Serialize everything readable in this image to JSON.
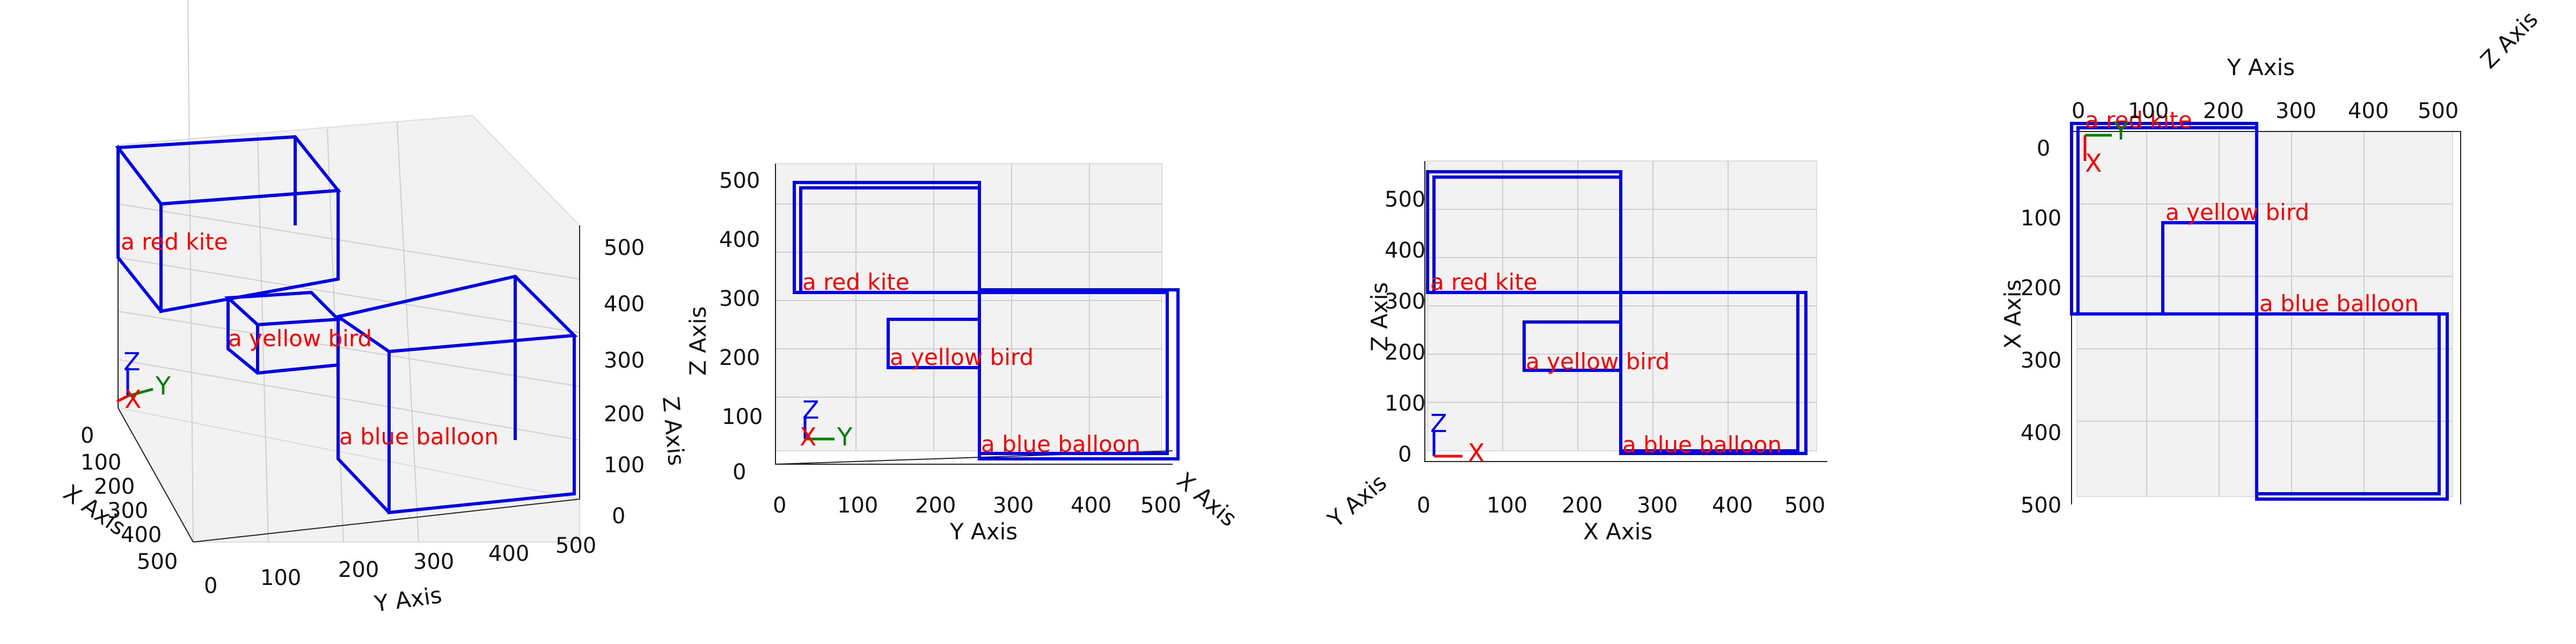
{
  "views": [
    {
      "id": "view-perspective",
      "x_axis_label": "X Axis",
      "y_axis_label": "Y Axis",
      "z_axis_label": "Z Axis",
      "x_ticks": [
        "0",
        "100",
        "200",
        "300",
        "400",
        "500"
      ],
      "y_ticks": [
        "0",
        "100",
        "200",
        "300",
        "400",
        "500"
      ],
      "z_ticks": [
        "0",
        "100",
        "200",
        "300",
        "400",
        "500"
      ],
      "triad": {
        "x": "X",
        "y": "Y",
        "z": "Z"
      }
    },
    {
      "id": "view-front-yz",
      "y_axis_label": "Y Axis",
      "z_axis_label": "Z Axis",
      "x_axis_label": "X Axis",
      "y_ticks": [
        "0",
        "100",
        "200",
        "300",
        "400",
        "500"
      ],
      "z_ticks": [
        "0",
        "100",
        "200",
        "300",
        "400",
        "500"
      ],
      "triad": {
        "y": "Y",
        "z": "Z",
        "x": "X"
      }
    },
    {
      "id": "view-side-xz",
      "x_axis_label": "X Axis",
      "z_axis_label": "Z Axis",
      "y_axis_label": "Y Axis",
      "x_ticks": [
        "0",
        "100",
        "200",
        "300",
        "400",
        "500"
      ],
      "z_ticks": [
        "0",
        "100",
        "200",
        "300",
        "400",
        "500"
      ],
      "triad": {
        "x": "X",
        "z": "Z"
      }
    },
    {
      "id": "view-top-xy",
      "y_axis_label": "Y Axis",
      "x_axis_label": "X Axis",
      "z_axis_label": "Z Axis",
      "y_ticks": [
        "0",
        "100",
        "200",
        "300",
        "400",
        "500"
      ],
      "x_ticks": [
        "0",
        "100",
        "200",
        "300",
        "400",
        "500"
      ],
      "triad": {
        "x": "X",
        "y": "Y"
      }
    }
  ],
  "objects": [
    {
      "label": "a red kite",
      "color": "#0000ee",
      "label_color": "#ff0000",
      "bounds": {
        "x": [
          0,
          260
        ],
        "y": [
          0,
          260
        ],
        "z": [
          300,
          500
        ]
      }
    },
    {
      "label": "a yellow bird",
      "color": "#0000ee",
      "label_color": "#ff0000",
      "bounds": {
        "x": [
          120,
          260
        ],
        "y": [
          140,
          260
        ],
        "z": [
          150,
          220
        ]
      }
    },
    {
      "label": "a blue balloon",
      "color": "#0000ee",
      "label_color": "#ff0000",
      "bounds": {
        "x": [
          260,
          520
        ],
        "y": [
          260,
          520
        ],
        "z": [
          0,
          300
        ]
      }
    }
  ]
}
